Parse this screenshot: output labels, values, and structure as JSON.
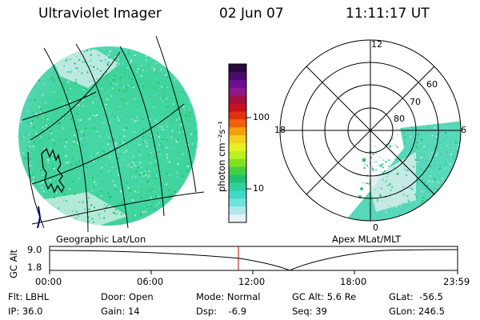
{
  "header": {
    "instrument": "Ultraviolet Imager",
    "date": "02 Jun 07",
    "time": "11:11:17 UT"
  },
  "colorbar": {
    "unit_label": "photon cm⁻²s⁻¹",
    "ticks": [
      "100",
      "10"
    ],
    "colors": [
      "#2a0a3a",
      "#4a0a6a",
      "#6a1090",
      "#8a1a8a",
      "#a01040",
      "#c81020",
      "#e03010",
      "#f06010",
      "#f5a010",
      "#f5d020",
      "#e6f020",
      "#b8f020",
      "#80e020",
      "#40d040",
      "#20c070",
      "#30d0a0",
      "#40d8c8",
      "#70e0e0",
      "#b0e8ee",
      "#e8f0f2"
    ]
  },
  "left_panel": {
    "caption": "Geographic Lat/Lon"
  },
  "right_panel": {
    "caption": "Apex MLat/MLT",
    "mlt_labels": {
      "top": "12",
      "left": "18",
      "right": "6",
      "bottom": "0"
    },
    "lat_labels": [
      "60",
      "70",
      "80"
    ]
  },
  "altitude_plot": {
    "ylabel": "GC Alt",
    "yticks": [
      "9.0",
      "1.8"
    ],
    "xticks": [
      "00:00",
      "06:00",
      "12:00",
      "18:00",
      "23:59"
    ],
    "current_time_marker": "11:11"
  },
  "info": {
    "flt": "Flt: LBHL",
    "ip": "IP: 36.0",
    "door": "Door: Open",
    "gain": "Gain: 14",
    "mode": "Mode: Normal",
    "dsp": "Dsp:    -6.9",
    "gcalt": "GC Alt: 5.6 Re",
    "seq": "Seq: 39",
    "glat": "GLat:  -56.5",
    "glon": "GLon: 246.5"
  },
  "accent_colors": {
    "emission": "#3fd7a0",
    "marker": "#c00000"
  }
}
